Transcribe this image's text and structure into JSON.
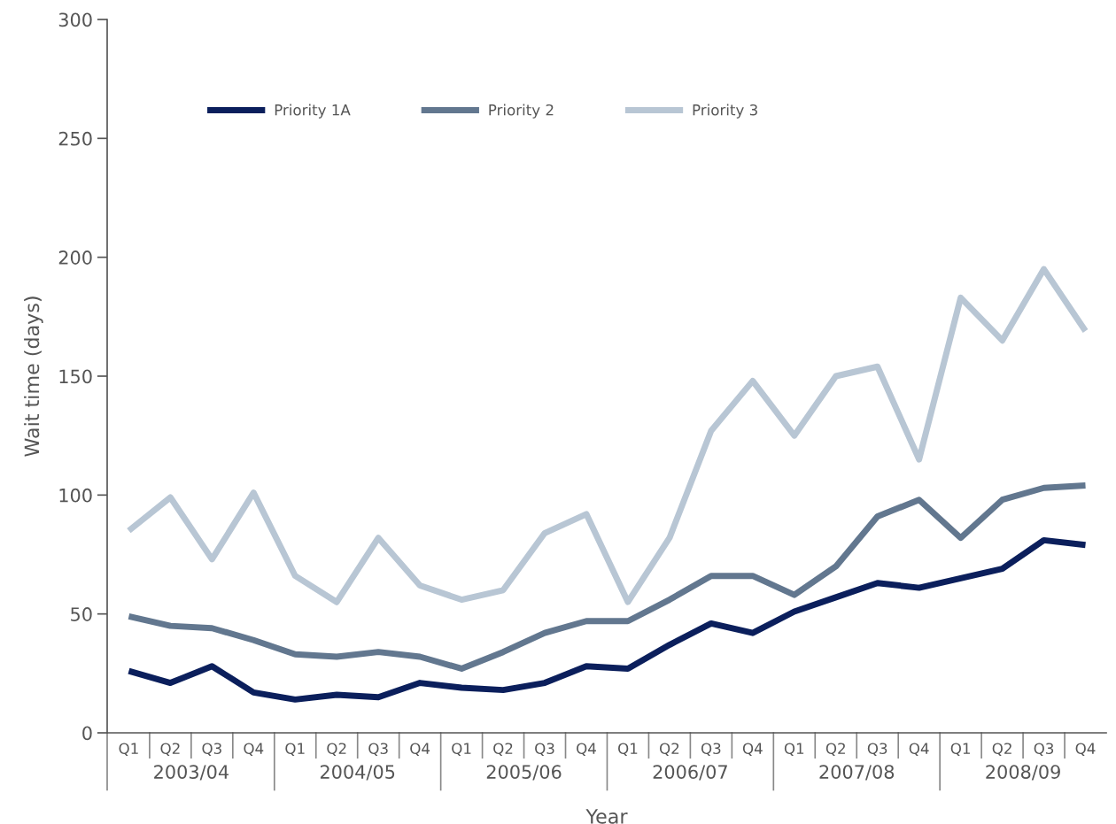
{
  "chart_data": {
    "type": "line",
    "xlabel": "Year",
    "ylabel": "Wait time (days)",
    "categories": [
      "Q1",
      "Q2",
      "Q3",
      "Q4",
      "Q1",
      "Q2",
      "Q3",
      "Q4",
      "Q1",
      "Q2",
      "Q3",
      "Q4",
      "Q1",
      "Q2",
      "Q3",
      "Q4",
      "Q1",
      "Q2",
      "Q3",
      "Q4",
      "Q1",
      "Q2",
      "Q3",
      "Q4"
    ],
    "annotations": [
      "2003/04",
      "2004/05",
      "2005/06",
      "2006/07",
      "2007/08",
      "2008/09"
    ],
    "series": [
      {
        "name": "Priority 1A",
        "color": "#0b1f5c",
        "values": [
          26,
          21,
          28,
          17,
          14,
          16,
          15,
          21,
          19,
          18,
          21,
          28,
          27,
          37,
          46,
          42,
          51,
          57,
          63,
          61,
          65,
          69,
          81,
          79
        ]
      },
      {
        "name": "Priority 2",
        "color": "#62778f",
        "values": [
          49,
          45,
          44,
          39,
          33,
          32,
          34,
          32,
          27,
          34,
          42,
          47,
          47,
          56,
          66,
          66,
          58,
          70,
          91,
          98,
          82,
          98,
          103,
          104
        ]
      },
      {
        "name": "Priority 3",
        "color": "#b8c6d4",
        "values": [
          85,
          99,
          73,
          101,
          66,
          55,
          82,
          62,
          56,
          60,
          84,
          92,
          55,
          82,
          127,
          148,
          125,
          150,
          154,
          115,
          183,
          165,
          195,
          169
        ]
      }
    ],
    "ylim": [
      0,
      300
    ],
    "yticks": [
      0,
      50,
      100,
      150,
      200,
      250,
      300
    ],
    "grid": false,
    "legend": "top left",
    "marker": "none",
    "line_style": "solid"
  }
}
